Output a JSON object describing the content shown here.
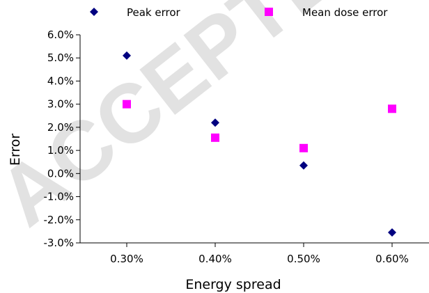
{
  "chart_data": {
    "type": "scatter",
    "title": "",
    "xlabel": "Energy spread",
    "ylabel": "Error",
    "x_categories": [
      "0.30%",
      "0.40%",
      "0.50%",
      "0.60%"
    ],
    "y_ticks": [
      "6.0%",
      "5.0%",
      "4.0%",
      "3.0%",
      "2.0%",
      "1.0%",
      "0.0%",
      "-1.0%",
      "-2.0%",
      "-3.0%"
    ],
    "ylim": [
      -3.0,
      6.0
    ],
    "grid": false,
    "legend_position": "top",
    "series": [
      {
        "name": "Peak error",
        "marker": "diamond",
        "color": "#000080",
        "values": [
          5.1,
          2.2,
          0.35,
          -2.55
        ]
      },
      {
        "name": "Mean dose error",
        "marker": "square",
        "color": "#ff00ff",
        "values": [
          3.0,
          1.55,
          1.1,
          2.8
        ]
      }
    ]
  },
  "watermark": {
    "text": "ACCEPTED",
    "color": "#d9d9d9"
  }
}
